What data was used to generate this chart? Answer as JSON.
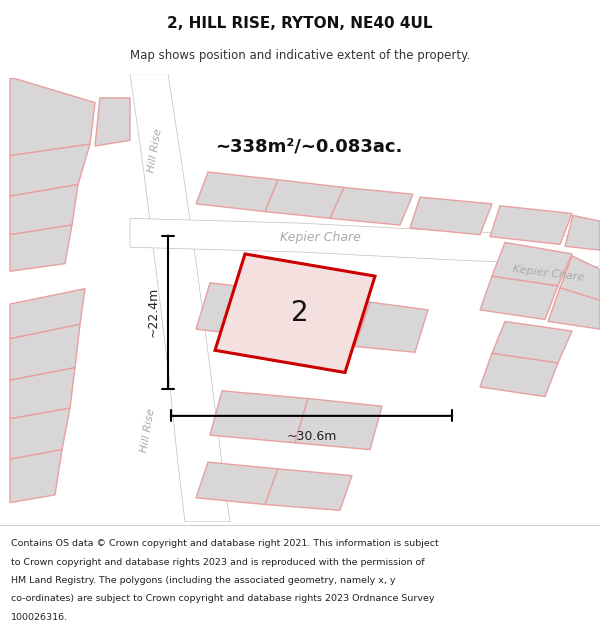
{
  "title": "2, HILL RISE, RYTON, NE40 4UL",
  "subtitle": "Map shows position and indicative extent of the property.",
  "footer_lines": [
    "Contains OS data © Crown copyright and database right 2021. This information is subject",
    "to Crown copyright and database rights 2023 and is reproduced with the permission of",
    "HM Land Registry. The polygons (including the associated geometry, namely x, y",
    "co-ordinates) are subject to Crown copyright and database rights 2023 Ordnance Survey",
    "100026316."
  ],
  "map_bg": "#f0eeee",
  "road_fill": "#ffffff",
  "road_line": "#c0c0c0",
  "building_fill": "#d8d6d6",
  "building_stroke": "#e8a0a0",
  "parcel_fill": "#f5e0e0",
  "parcel_stroke": "#cc0000",
  "area_label": "~338m²/~0.083ac.",
  "number_label": "2",
  "dim_h": "~30.6m",
  "dim_v": "~22.4m",
  "street_kepier_h": "Kepier Chare",
  "street_kepier_d": "Kepier Chare",
  "street_hill_top": "Hill Rise",
  "street_hill_bot": "Hill Rise",
  "text_color_street": "#aaaaaa",
  "text_color_dim": "#222222",
  "text_color_area": "#111111",
  "text_color_number": "#111111"
}
